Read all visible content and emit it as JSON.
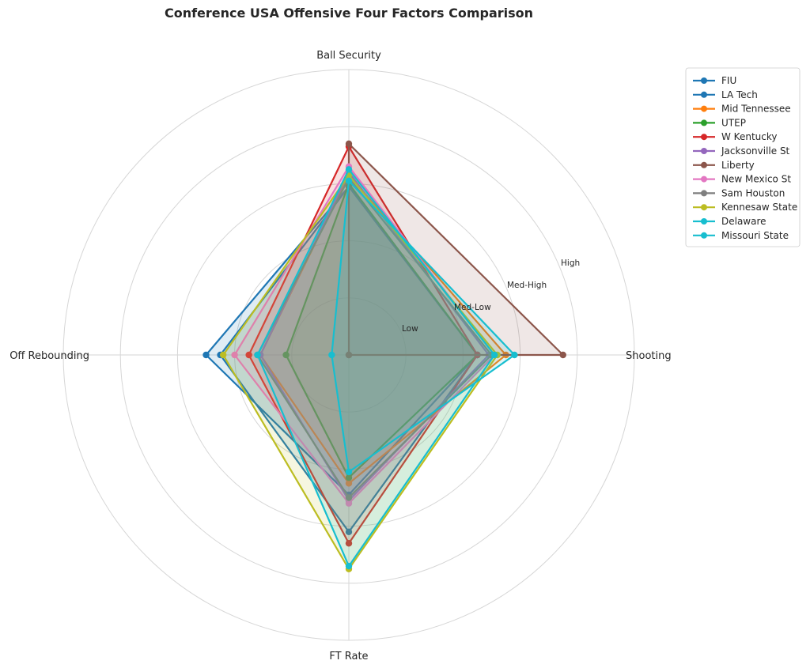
{
  "chart_data": {
    "type": "radar",
    "title": "Conference USA Offensive Four Factors Comparison",
    "axes": [
      "Ball Security",
      "Shooting",
      "FT Rate",
      "Off Rebounding"
    ],
    "radial_ticks": [
      "Low",
      "Med-Low",
      "Med-High",
      "High"
    ],
    "radial_max": 5,
    "grid": true,
    "legend_position": "upper-right-outside",
    "series": [
      {
        "name": "FIU",
        "color": "#1f77b4",
        "values": [
          2.95,
          2.25,
          2.45,
          2.5
        ]
      },
      {
        "name": "LA Tech",
        "color": "#1f77b4",
        "values": [
          2.95,
          2.25,
          3.1,
          2.25
        ]
      },
      {
        "name": "Mid Tennessee",
        "color": "#ff7f0e",
        "values": [
          3.15,
          2.75,
          2.25,
          1.55
        ]
      },
      {
        "name": "UTEP",
        "color": "#2ca02c",
        "values": [
          3.0,
          2.25,
          2.15,
          1.1
        ]
      },
      {
        "name": "W Kentucky",
        "color": "#d62728",
        "values": [
          3.65,
          2.25,
          3.3,
          1.75
        ]
      },
      {
        "name": "Jacksonville St",
        "color": "#9467bd",
        "values": [
          3.2,
          2.45,
          2.55,
          1.55
        ]
      },
      {
        "name": "Liberty",
        "color": "#8c564b",
        "values": [
          3.7,
          3.75,
          0.0,
          0.0
        ]
      },
      {
        "name": "New Mexico St",
        "color": "#e377c2",
        "values": [
          3.3,
          2.55,
          2.6,
          2.0
        ]
      },
      {
        "name": "Sam Houston",
        "color": "#7f7f7f",
        "values": [
          3.1,
          2.5,
          2.5,
          1.6
        ]
      },
      {
        "name": "Kennesaw State",
        "color": "#bcbd22",
        "values": [
          3.15,
          2.6,
          3.75,
          2.2
        ]
      },
      {
        "name": "Delaware",
        "color": "#17becf",
        "values": [
          3.25,
          2.55,
          3.7,
          1.6
        ]
      },
      {
        "name": "Missouri State",
        "color": "#17becf",
        "values": [
          3.05,
          2.9,
          2.05,
          0.3
        ]
      }
    ]
  }
}
